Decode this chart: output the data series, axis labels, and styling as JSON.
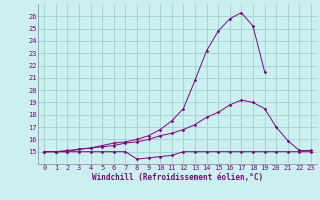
{
  "xlabel": "Windchill (Refroidissement éolien,°C)",
  "bg_color": "#caf0f0",
  "line_color": "#880088",
  "grid_color": "#99cccc",
  "x": [
    0,
    1,
    2,
    3,
    4,
    5,
    6,
    7,
    8,
    9,
    10,
    11,
    12,
    13,
    14,
    15,
    16,
    17,
    18,
    19,
    20,
    21,
    22,
    23
  ],
  "line1": [
    15,
    15,
    15,
    15,
    15,
    15,
    15,
    15,
    14.4,
    14.5,
    14.6,
    14.7,
    15,
    15,
    15,
    15,
    15,
    15,
    15,
    15,
    15,
    15,
    15,
    15
  ],
  "line2": [
    15,
    15,
    15.1,
    15.2,
    15.3,
    15.4,
    15.5,
    15.7,
    15.8,
    16.0,
    16.3,
    16.5,
    16.8,
    17.2,
    17.8,
    18.2,
    18.8,
    19.2,
    19.0,
    18.5,
    17.0,
    15.9,
    15.1,
    15.1
  ],
  "line3": [
    15,
    15,
    15,
    15.2,
    15.3,
    15.5,
    15.7,
    15.8,
    16.0,
    16.3,
    16.8,
    17.5,
    18.5,
    20.8,
    23.2,
    24.8,
    25.8,
    26.3,
    25.2,
    21.5,
    null,
    null,
    null,
    null
  ],
  "ylim_min": 14,
  "ylim_max": 27,
  "xlim_min": -0.5,
  "xlim_max": 23.5,
  "yticks": [
    15,
    16,
    17,
    18,
    19,
    20,
    21,
    22,
    23,
    24,
    25,
    26
  ],
  "xticks": [
    0,
    1,
    2,
    3,
    4,
    5,
    6,
    7,
    8,
    9,
    10,
    11,
    12,
    13,
    14,
    15,
    16,
    17,
    18,
    19,
    20,
    21,
    22,
    23
  ]
}
